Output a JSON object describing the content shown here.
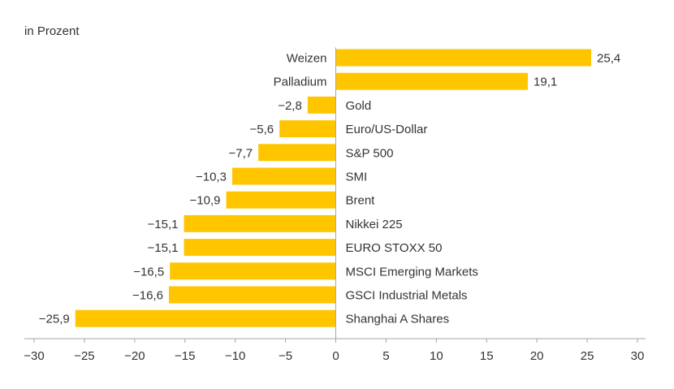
{
  "chart_data": {
    "type": "bar",
    "orientation": "horizontal",
    "unit_label": "in Prozent",
    "categories": [
      "Weizen",
      "Palladium",
      "Gold",
      "Euro/US-Dollar",
      "S&P 500",
      "SMI",
      "Brent",
      "Nikkei 225",
      "EURO STOXX 50",
      "MSCI Emerging Markets",
      "GSCI Industrial Metals",
      "Shanghai A Shares"
    ],
    "values": [
      25.4,
      19.1,
      -2.8,
      -5.6,
      -7.7,
      -10.3,
      -10.9,
      -15.1,
      -15.1,
      -16.5,
      -16.6,
      -25.9
    ],
    "value_labels": [
      "25,4",
      "19,1",
      "−2,8",
      "−5,6",
      "−7,7",
      "−10,3",
      "−10,9",
      "−15,1",
      "−15,1",
      "−16,5",
      "−16,6",
      "−25,9"
    ],
    "xlim": [
      -30,
      30
    ],
    "xticks": [
      -30,
      -25,
      -20,
      -15,
      -10,
      -5,
      0,
      5,
      10,
      15,
      20,
      25,
      30
    ],
    "xtick_labels": [
      "−30",
      "−25",
      "−20",
      "−15",
      "−10",
      "−5",
      "0",
      "5",
      "10",
      "15",
      "20",
      "25",
      "30"
    ],
    "grid": false,
    "legend": "none",
    "colors": {
      "bar": "#FFC600",
      "axis": "#A6A6A6",
      "text": "#333333"
    }
  }
}
